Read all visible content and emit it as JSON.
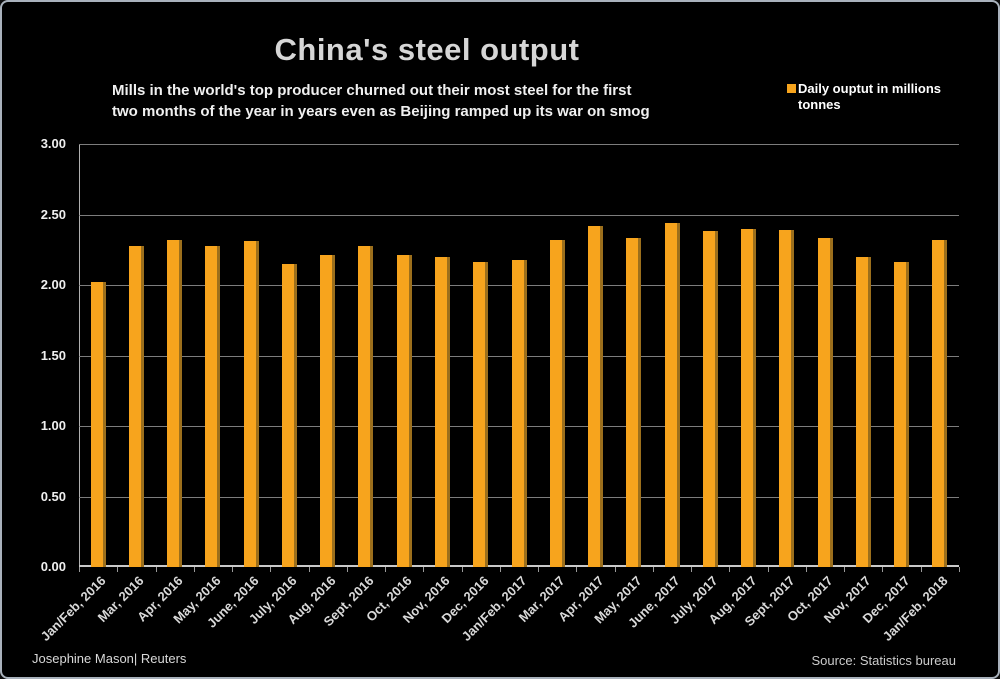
{
  "frame": {
    "background": "#000000",
    "border_color": "#a9b2bc"
  },
  "header": {
    "title": "China's steel output",
    "subtitle_lines": [
      "Mills in the world's top producer churned out their most steel for the first",
      "two months of the year in years even as Beijing ramped up its war on smog"
    ]
  },
  "legend": {
    "marker_color": "#f7a41d",
    "label": "Daily ouptut in millions tonnes"
  },
  "footer": {
    "credit": "Josephine Mason| Reuters",
    "source": "Source: Statistics bureau"
  },
  "chart_data": {
    "type": "bar",
    "title": "China's steel output",
    "categories": [
      "Jan/Feb, 2016",
      "Mar, 2016",
      "Apr, 2016",
      "May, 2016",
      "June, 2016",
      "July, 2016",
      "Aug, 2016",
      "Sept, 2016",
      "Oct, 2016",
      "Nov, 2016",
      "Dec, 2016",
      "Jan/Feb, 2017",
      "Mar, 2017",
      "Apr, 2017",
      "May, 2017",
      "June, 2017",
      "July, 2017",
      "Aug, 2017",
      "Sept, 2017",
      "Oct, 2017",
      "Nov, 2017",
      "Dec, 2017",
      "Jan/Feb, 2018"
    ],
    "values": [
      2.02,
      2.28,
      2.32,
      2.28,
      2.31,
      2.15,
      2.21,
      2.28,
      2.21,
      2.2,
      2.16,
      2.18,
      2.32,
      2.42,
      2.33,
      2.44,
      2.38,
      2.4,
      2.39,
      2.33,
      2.2,
      2.16,
      2.32
    ],
    "series_name": "Daily ouptut in millions tonnes",
    "xlabel": "",
    "ylabel": "",
    "ylim": [
      0,
      3.0
    ],
    "yticks": [
      "0.00",
      "0.50",
      "1.00",
      "1.50",
      "2.00",
      "2.50",
      "3.00"
    ],
    "ytick_values": [
      0.0,
      0.5,
      1.0,
      1.5,
      2.0,
      2.5,
      3.0
    ],
    "grid": true,
    "gridline_color": "#7d7d7d",
    "bar_color": "#f7a41d",
    "bar_edge_color": "#9c6f1c",
    "legend_position": "top-right",
    "background_color": "#000000"
  }
}
